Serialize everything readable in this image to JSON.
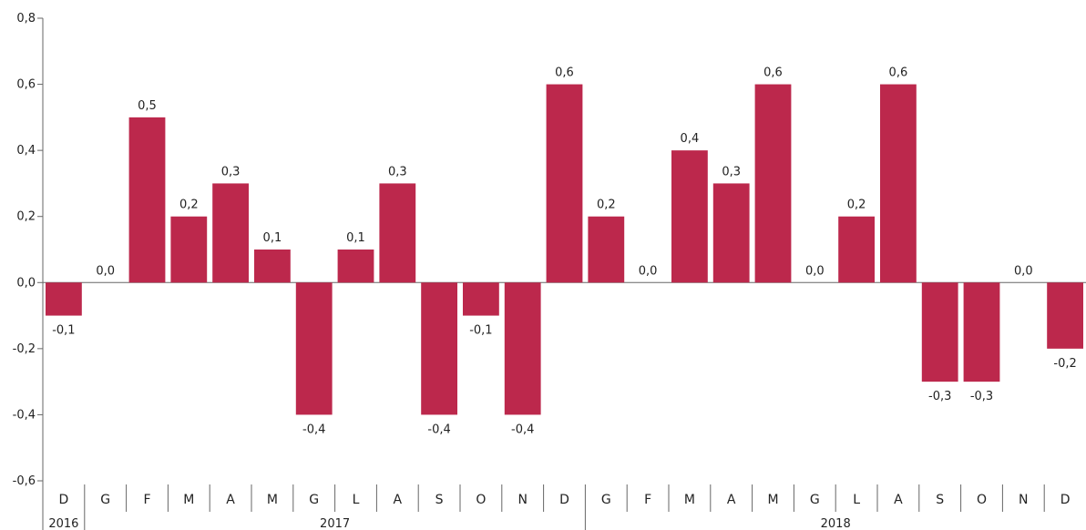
{
  "chart_data": {
    "type": "bar",
    "title": "",
    "xlabel": "",
    "ylabel": "",
    "ylim": [
      -0.6,
      0.8
    ],
    "yticks": [
      -0.6,
      -0.4,
      -0.2,
      0.0,
      0.2,
      0.4,
      0.6,
      0.8
    ],
    "ytick_labels": [
      "-0,6",
      "-0,4",
      "-0,2",
      "0,0",
      "0,2",
      "0,4",
      "0,6",
      "0,8"
    ],
    "categories": [
      "D",
      "G",
      "F",
      "M",
      "A",
      "M",
      "G",
      "L",
      "A",
      "S",
      "O",
      "N",
      "D",
      "G",
      "F",
      "M",
      "A",
      "M",
      "G",
      "L",
      "A",
      "S",
      "O",
      "N",
      "D"
    ],
    "values": [
      -0.1,
      0.0,
      0.5,
      0.2,
      0.3,
      0.1,
      -0.4,
      0.1,
      0.3,
      -0.4,
      -0.1,
      -0.4,
      0.6,
      0.2,
      0.0,
      0.4,
      0.3,
      0.6,
      0.0,
      0.2,
      0.6,
      -0.3,
      -0.3,
      0.0,
      -0.2
    ],
    "value_labels": [
      "-0,1",
      "0,0",
      "0,5",
      "0,2",
      "0,3",
      "0,1",
      "-0,4",
      "0,1",
      "0,3",
      "-0,4",
      "-0,1",
      "-0,4",
      "0,6",
      "0,2",
      "0,0",
      "0,4",
      "0,3",
      "0,6",
      "0,0",
      "0,2",
      "0,6",
      "-0,3",
      "-0,3",
      "0,0",
      "-0,2"
    ],
    "years": [
      {
        "label": "2016",
        "count": 1
      },
      {
        "label": "2017",
        "count": 12
      },
      {
        "label": "2018",
        "count": 12
      }
    ],
    "bar_color": "#bc284c",
    "grid": false,
    "legend": "none"
  }
}
